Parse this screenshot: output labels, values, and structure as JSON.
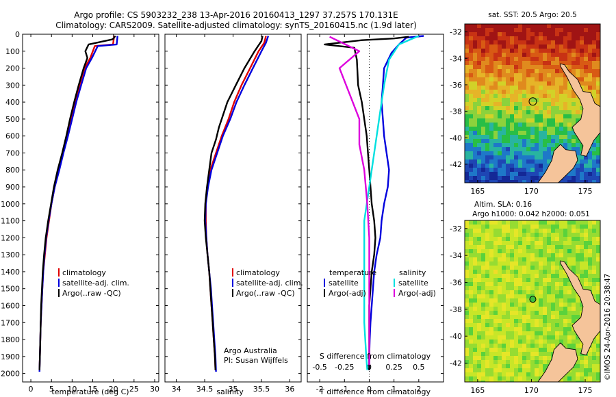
{
  "header": {
    "line1": "Argo profile: CS 5903232_238 13-Apr-2016 20160413_1297 37.257S 170.131E",
    "line2": "Climatology: CARS2009. Satellite-adjusted climatology: synTS_20160415.nc (1.9d later)"
  },
  "colors": {
    "climatology": "#e00000",
    "satellite": "#0000dd",
    "argo": "#000000",
    "s_satellite": "#00e0e0",
    "s_argo": "#dd00dd",
    "land": "#f5c49a"
  },
  "chart_data": [
    {
      "type": "line",
      "xlabel": "temperature (deg C)",
      "xlim": [
        -2,
        31
      ],
      "xticks": [
        0,
        5,
        10,
        15,
        20,
        25,
        30
      ],
      "ylim": [
        0,
        2050
      ],
      "yticks": [
        0,
        100,
        200,
        300,
        400,
        500,
        600,
        700,
        800,
        900,
        1000,
        1100,
        1200,
        1300,
        1400,
        1500,
        1600,
        1700,
        1800,
        1900,
        2000
      ],
      "legend": [
        "climatology",
        "satellite-adj. clim.",
        "Argo(..raw -QC)"
      ],
      "legend_placement": "lower-right",
      "series": [
        {
          "name": "climatology",
          "color": "#e00000",
          "points": [
            [
              20.2,
              10
            ],
            [
              19.9,
              60
            ],
            [
              15.5,
              70
            ],
            [
              14.4,
              140
            ],
            [
              13.0,
              200
            ],
            [
              11.8,
              300
            ],
            [
              10.7,
              400
            ],
            [
              9.8,
              500
            ],
            [
              8.8,
              600
            ],
            [
              7.8,
              700
            ],
            [
              6.8,
              800
            ],
            [
              5.8,
              900
            ],
            [
              5.0,
              1000
            ],
            [
              4.4,
              1100
            ],
            [
              3.8,
              1200
            ],
            [
              3.4,
              1300
            ],
            [
              3.0,
              1400
            ],
            [
              2.8,
              1500
            ],
            [
              2.6,
              1600
            ],
            [
              2.4,
              1700
            ],
            [
              2.3,
              1800
            ],
            [
              2.2,
              1900
            ],
            [
              2.1,
              1980
            ]
          ]
        },
        {
          "name": "satellite-adj. clim.",
          "color": "#0000dd",
          "points": [
            [
              21.0,
              10
            ],
            [
              20.8,
              60
            ],
            [
              16.2,
              70
            ],
            [
              14.8,
              140
            ],
            [
              13.4,
              200
            ],
            [
              12.2,
              300
            ],
            [
              11.0,
              400
            ],
            [
              10.0,
              500
            ],
            [
              9.0,
              600
            ],
            [
              7.9,
              700
            ],
            [
              6.9,
              800
            ],
            [
              5.8,
              900
            ],
            [
              5.0,
              1000
            ],
            [
              4.3,
              1100
            ],
            [
              3.7,
              1200
            ],
            [
              3.3,
              1300
            ],
            [
              3.0,
              1400
            ],
            [
              2.8,
              1500
            ],
            [
              2.6,
              1600
            ],
            [
              2.4,
              1700
            ],
            [
              2.3,
              1800
            ],
            [
              2.2,
              1900
            ],
            [
              2.1,
              1990
            ]
          ]
        },
        {
          "name": "Argo(..raw -QC)",
          "color": "#000000",
          "points": [
            [
              20.5,
              10
            ],
            [
              19.8,
              30
            ],
            [
              14.0,
              60
            ],
            [
              13.2,
              100
            ],
            [
              13.7,
              140
            ],
            [
              12.8,
              200
            ],
            [
              11.6,
              300
            ],
            [
              10.5,
              400
            ],
            [
              9.5,
              500
            ],
            [
              8.6,
              600
            ],
            [
              7.6,
              700
            ],
            [
              6.5,
              800
            ],
            [
              5.6,
              900
            ],
            [
              4.9,
              1000
            ],
            [
              4.2,
              1100
            ],
            [
              3.6,
              1200
            ],
            [
              3.2,
              1300
            ],
            [
              2.9,
              1400
            ],
            [
              2.7,
              1500
            ],
            [
              2.5,
              1600
            ],
            [
              2.4,
              1700
            ],
            [
              2.3,
              1800
            ],
            [
              2.2,
              1900
            ],
            [
              2.1,
              1980
            ]
          ]
        }
      ]
    },
    {
      "type": "line",
      "xlabel": "salinity",
      "xlim": [
        33.8,
        36.2
      ],
      "xticks": [
        34,
        34.5,
        35,
        35.5,
        36
      ],
      "ylim": [
        0,
        2050
      ],
      "legend": [
        "climatology",
        "satellite-adj. clim.",
        "Argo(..raw -QC)"
      ],
      "legend_placement": "lower-right",
      "annotation": [
        "Argo Australia",
        "PI: Susan Wijffels"
      ],
      "series": [
        {
          "name": "climatology",
          "color": "#e00000",
          "points": [
            [
              35.58,
              10
            ],
            [
              35.55,
              50
            ],
            [
              35.45,
              100
            ],
            [
              35.3,
              200
            ],
            [
              35.15,
              300
            ],
            [
              35.02,
              400
            ],
            [
              34.92,
              500
            ],
            [
              34.8,
              600
            ],
            [
              34.7,
              700
            ],
            [
              34.6,
              800
            ],
            [
              34.55,
              900
            ],
            [
              34.52,
              1000
            ],
            [
              34.52,
              1100
            ],
            [
              34.53,
              1200
            ],
            [
              34.55,
              1300
            ],
            [
              34.58,
              1400
            ],
            [
              34.6,
              1500
            ],
            [
              34.62,
              1600
            ],
            [
              34.64,
              1700
            ],
            [
              34.66,
              1800
            ],
            [
              34.68,
              1900
            ],
            [
              34.69,
              1980
            ]
          ]
        },
        {
          "name": "satellite-adj. clim.",
          "color": "#0000dd",
          "points": [
            [
              35.62,
              10
            ],
            [
              35.58,
              50
            ],
            [
              35.5,
              100
            ],
            [
              35.35,
              200
            ],
            [
              35.2,
              300
            ],
            [
              35.06,
              400
            ],
            [
              34.95,
              500
            ],
            [
              34.82,
              600
            ],
            [
              34.72,
              700
            ],
            [
              34.62,
              800
            ],
            [
              34.56,
              900
            ],
            [
              34.52,
              1000
            ],
            [
              34.51,
              1100
            ],
            [
              34.53,
              1200
            ],
            [
              34.55,
              1300
            ],
            [
              34.58,
              1400
            ],
            [
              34.61,
              1500
            ],
            [
              34.63,
              1600
            ],
            [
              34.65,
              1700
            ],
            [
              34.67,
              1800
            ],
            [
              34.69,
              1900
            ],
            [
              34.7,
              1990
            ]
          ]
        },
        {
          "name": "Argo(..raw -QC)",
          "color": "#000000",
          "points": [
            [
              35.52,
              10
            ],
            [
              35.5,
              40
            ],
            [
              35.38,
              100
            ],
            [
              35.2,
              200
            ],
            [
              35.05,
              300
            ],
            [
              34.9,
              400
            ],
            [
              34.82,
              480
            ],
            [
              34.75,
              550
            ],
            [
              34.7,
              620
            ],
            [
              34.62,
              700
            ],
            [
              34.58,
              800
            ],
            [
              34.54,
              900
            ],
            [
              34.51,
              1000
            ],
            [
              34.5,
              1100
            ],
            [
              34.52,
              1200
            ],
            [
              34.55,
              1300
            ],
            [
              34.58,
              1400
            ],
            [
              34.6,
              1500
            ],
            [
              34.62,
              1600
            ],
            [
              34.64,
              1700
            ],
            [
              34.66,
              1800
            ],
            [
              34.68,
              1900
            ],
            [
              34.69,
              1980
            ]
          ]
        }
      ]
    },
    {
      "type": "line",
      "xlabel": "T difference from climatology",
      "xlabel_top": "S difference from climatology",
      "xlim": [
        -2.5,
        3.0
      ],
      "xticks": [
        -2,
        -1,
        0,
        1,
        2
      ],
      "xticks_top": [
        -0.5,
        -0.25,
        0,
        0.25,
        0.5
      ],
      "ylim": [
        0,
        2050
      ],
      "legend": {
        "temperature": [
          "satellite",
          "Argo(-adj)"
        ],
        "salinity": [
          "satellite",
          "Argo(-adj)"
        ]
      },
      "legend_placement": "lower-center",
      "series": [
        {
          "name": "satellite",
          "group": "temperature",
          "color": "#0000dd",
          "points": [
            [
              2.2,
              10
            ],
            [
              1.5,
              20
            ],
            [
              1.2,
              60
            ],
            [
              0.9,
              110
            ],
            [
              0.6,
              200
            ],
            [
              0.55,
              300
            ],
            [
              0.5,
              400
            ],
            [
              0.55,
              500
            ],
            [
              0.6,
              600
            ],
            [
              0.7,
              700
            ],
            [
              0.8,
              800
            ],
            [
              0.75,
              900
            ],
            [
              0.6,
              1000
            ],
            [
              0.5,
              1100
            ],
            [
              0.45,
              1200
            ],
            [
              0.3,
              1300
            ],
            [
              0.2,
              1400
            ],
            [
              0.15,
              1500
            ],
            [
              0.1,
              1600
            ],
            [
              0.05,
              1700
            ],
            [
              0.02,
              1800
            ],
            [
              0.0,
              1900
            ],
            [
              0.0,
              1980
            ]
          ]
        },
        {
          "name": "Argo(-adj)",
          "group": "temperature",
          "color": "#000000",
          "points": [
            [
              1.6,
              15
            ],
            [
              1.0,
              25
            ],
            [
              -0.3,
              35
            ],
            [
              -1.8,
              60
            ],
            [
              -0.6,
              80
            ],
            [
              -0.5,
              150
            ],
            [
              -0.45,
              300
            ],
            [
              -0.3,
              400
            ],
            [
              -0.2,
              500
            ],
            [
              -0.1,
              600
            ],
            [
              -0.05,
              700
            ],
            [
              0.0,
              800
            ],
            [
              0.05,
              900
            ],
            [
              0.1,
              1000
            ],
            [
              0.2,
              1100
            ],
            [
              0.25,
              1200
            ],
            [
              0.2,
              1300
            ],
            [
              0.1,
              1400
            ],
            [
              0.05,
              1500
            ],
            [
              0.0,
              1600
            ],
            [
              0.0,
              1700
            ],
            [
              0.0,
              1800
            ],
            [
              0.0,
              1900
            ],
            [
              0.0,
              1980
            ]
          ]
        },
        {
          "name": "satellite",
          "group": "salinity",
          "color": "#00e0e0",
          "points": [
            [
              0.5,
              10
            ],
            [
              0.3,
              60
            ],
            [
              0.2,
              150
            ],
            [
              0.15,
              300
            ],
            [
              0.1,
              500
            ],
            [
              0.05,
              700
            ],
            [
              0.0,
              900
            ],
            [
              -0.05,
              1100
            ],
            [
              -0.05,
              1300
            ],
            [
              -0.05,
              1500
            ],
            [
              -0.05,
              1700
            ],
            [
              -0.03,
              1900
            ],
            [
              -0.02,
              1980
            ]
          ]
        },
        {
          "name": "Argo(-adj)",
          "group": "salinity",
          "color": "#dd00dd",
          "points": [
            [
              -0.4,
              15
            ],
            [
              -0.1,
              100
            ],
            [
              -0.3,
              200
            ],
            [
              -0.2,
              350
            ],
            [
              -0.1,
              500
            ],
            [
              -0.1,
              650
            ],
            [
              -0.05,
              800
            ],
            [
              -0.02,
              1000
            ],
            [
              0.0,
              1200
            ],
            [
              0.0,
              1500
            ],
            [
              0.0,
              1800
            ],
            [
              0.0,
              1950
            ]
          ]
        }
      ]
    },
    {
      "type": "heatmap",
      "title": "sat. SST: 20.5 Argo: 20.5",
      "xticks": [
        165,
        170,
        175
      ],
      "yticks": [
        -32,
        -34,
        -36,
        -38,
        -40,
        -42
      ],
      "xlim": [
        163.8,
        176.4
      ],
      "ylim": [
        -43.4,
        -31.4
      ],
      "marker": {
        "lon": 170.131,
        "lat": -37.257
      }
    },
    {
      "type": "heatmap",
      "title_lines": [
        "Altim. SLA: 0.16",
        "Argo h1000: 0.042 h2000: 0.051"
      ],
      "xticks": [
        165,
        170,
        175
      ],
      "yticks": [
        -32,
        -34,
        -36,
        -38,
        -40,
        -42
      ],
      "xlim": [
        163.8,
        176.4
      ],
      "ylim": [
        -43.4,
        -31.4
      ],
      "marker": {
        "lon": 170.131,
        "lat": -37.257
      }
    }
  ],
  "stamp": "©IMOS 24-Apr-2016 20:38:47"
}
